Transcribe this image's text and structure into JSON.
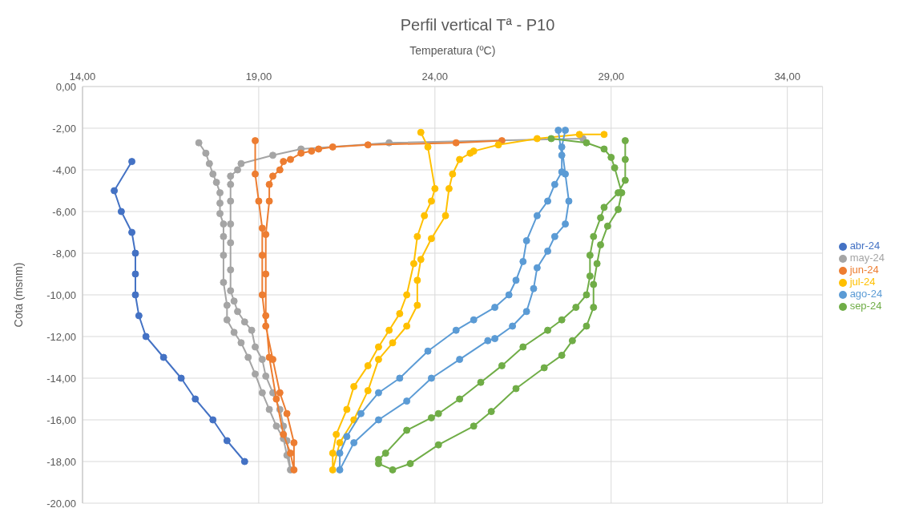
{
  "chart_data": {
    "type": "line",
    "title": "Perfil vertical Tª - P10",
    "xlabel": "Temperatura (ºC)",
    "ylabel": "Cota (msnm)",
    "xlim": [
      14,
      35
    ],
    "xticks": [
      {
        "value": 14,
        "label": "14,00"
      },
      {
        "value": 19,
        "label": "19,00"
      },
      {
        "value": 24,
        "label": "24,00"
      },
      {
        "value": 29,
        "label": "29,00"
      },
      {
        "value": 34,
        "label": "34,00"
      }
    ],
    "ylim": [
      -20,
      0
    ],
    "yticks": [
      {
        "value": 0,
        "label": "0,00"
      },
      {
        "value": -2,
        "label": "-2,00"
      },
      {
        "value": -4,
        "label": "-4,00"
      },
      {
        "value": -6,
        "label": "-6,00"
      },
      {
        "value": -8,
        "label": "-8,00"
      },
      {
        "value": -10,
        "label": "-10,00"
      },
      {
        "value": -12,
        "label": "-12,00"
      },
      {
        "value": -14,
        "label": "-14,00"
      },
      {
        "value": -16,
        "label": "-16,00"
      },
      {
        "value": -18,
        "label": "-18,00"
      },
      {
        "value": -20,
        "label": "-20,00"
      }
    ],
    "grid": true,
    "legend": "right",
    "marker": "circle",
    "line_style": "solid",
    "series": [
      {
        "name": "abr-24",
        "color": "#4472c4",
        "x": [
          15.4,
          14.9,
          15.1,
          15.4,
          15.5,
          15.5,
          15.5,
          15.6,
          15.8,
          16.3,
          16.8,
          17.2,
          17.7,
          18.1,
          18.6
        ],
        "values": [
          -3.6,
          -5.0,
          -6.0,
          -7.0,
          -8.0,
          -9.0,
          -10.0,
          -11.0,
          -12.0,
          -13.0,
          -14.0,
          -15.0,
          -16.0,
          -17.0,
          -18.0
        ]
      },
      {
        "name": "may-24",
        "color": "#a5a5a5",
        "x": [
          28.2,
          22.7,
          20.2,
          19.4,
          18.5,
          18.4,
          18.2,
          18.2,
          18.2,
          18.2,
          18.2,
          18.2,
          18.2,
          18.3,
          18.4,
          18.6,
          18.8,
          18.9,
          19.1,
          19.2,
          19.4,
          19.6,
          19.7,
          19.8,
          19.9,
          19.8,
          19.7,
          19.5,
          19.3,
          19.1,
          18.9,
          18.7,
          18.5,
          18.3,
          18.1,
          18.1,
          18.0,
          18.0,
          18.0,
          18.0,
          17.9,
          17.9,
          17.9,
          17.8,
          17.7,
          17.6,
          17.5,
          17.3
        ],
        "values": [
          -2.5,
          -2.7,
          -3.0,
          -3.3,
          -3.7,
          -4.0,
          -4.3,
          -4.7,
          -5.5,
          -6.6,
          -7.5,
          -8.8,
          -9.8,
          -10.3,
          -10.8,
          -11.3,
          -11.7,
          -12.5,
          -13.1,
          -13.9,
          -14.7,
          -15.5,
          -16.3,
          -17.0,
          -18.4,
          -17.7,
          -16.9,
          -16.3,
          -15.5,
          -14.7,
          -13.8,
          -13.0,
          -12.3,
          -11.8,
          -11.2,
          -10.5,
          -9.4,
          -8.1,
          -7.2,
          -6.6,
          -6.1,
          -5.6,
          -5.1,
          -4.6,
          -4.2,
          -3.7,
          -3.2,
          -2.7
        ]
      },
      {
        "name": "jun-24",
        "color": "#ed7d31",
        "x": [
          25.9,
          24.6,
          22.1,
          21.1,
          20.7,
          20.5,
          20.2,
          19.9,
          19.7,
          19.6,
          19.4,
          19.3,
          19.3,
          19.2,
          19.2,
          19.2,
          19.3,
          19.5,
          19.7,
          19.9,
          20.0,
          20.0,
          19.8,
          19.6,
          19.4,
          19.2,
          19.1,
          19.1,
          19.1,
          19.0,
          18.9,
          18.9
        ],
        "values": [
          -2.6,
          -2.7,
          -2.8,
          -2.9,
          -3.0,
          -3.1,
          -3.2,
          -3.5,
          -3.6,
          -4.0,
          -4.3,
          -4.7,
          -5.5,
          -7.1,
          -9.0,
          -11.0,
          -13.0,
          -15.0,
          -16.7,
          -17.6,
          -18.4,
          -17.1,
          -15.7,
          -14.7,
          -13.1,
          -11.5,
          -10.0,
          -8.1,
          -6.8,
          -5.5,
          -4.2,
          -2.6
        ]
      },
      {
        "name": "jul-24",
        "color": "#ffc000",
        "x": [
          28.8,
          28.1,
          26.9,
          25.8,
          25.1,
          25.0,
          24.7,
          24.5,
          24.4,
          24.3,
          23.9,
          23.6,
          23.5,
          23.5,
          23.2,
          22.8,
          22.4,
          22.1,
          21.7,
          21.3,
          21.1,
          21.1,
          21.2,
          21.5,
          21.7,
          22.1,
          22.4,
          22.7,
          23.0,
          23.2,
          23.4,
          23.5,
          23.7,
          23.9,
          24.0,
          23.8,
          23.6
        ],
        "values": [
          -2.3,
          -2.3,
          -2.5,
          -2.8,
          -3.1,
          -3.2,
          -3.5,
          -4.2,
          -4.9,
          -6.2,
          -7.3,
          -8.3,
          -9.3,
          -10.5,
          -11.5,
          -12.3,
          -13.1,
          -14.6,
          -16.0,
          -17.1,
          -18.4,
          -17.6,
          -16.7,
          -15.5,
          -14.4,
          -13.4,
          -12.5,
          -11.7,
          -10.9,
          -10.0,
          -8.5,
          -7.2,
          -6.2,
          -5.5,
          -4.9,
          -2.9,
          -2.2
        ]
      },
      {
        "name": "ago-24",
        "color": "#5b9bd5",
        "x": [
          27.7,
          27.6,
          27.7,
          27.8,
          27.7,
          27.4,
          27.2,
          26.9,
          26.8,
          26.6,
          26.2,
          25.7,
          25.5,
          24.7,
          23.9,
          23.2,
          22.4,
          21.7,
          21.3,
          21.3,
          21.5,
          21.9,
          22.4,
          23.0,
          23.8,
          24.6,
          25.1,
          25.7,
          26.1,
          26.3,
          26.5,
          26.6,
          26.9,
          27.2,
          27.4,
          27.6,
          27.6,
          27.5
        ],
        "values": [
          -2.1,
          -2.9,
          -4.2,
          -5.5,
          -6.6,
          -7.2,
          -7.9,
          -8.7,
          -9.7,
          -10.8,
          -11.5,
          -12.1,
          -12.2,
          -13.1,
          -14.0,
          -15.1,
          -16.0,
          -17.1,
          -18.4,
          -17.6,
          -16.8,
          -15.7,
          -14.7,
          -14.0,
          -12.7,
          -11.7,
          -11.2,
          -10.6,
          -10.0,
          -9.3,
          -8.4,
          -7.4,
          -6.2,
          -5.5,
          -4.7,
          -4.1,
          -3.3,
          -2.1
        ]
      },
      {
        "name": "sep-24",
        "color": "#70ad47",
        "x": [
          27.3,
          28.3,
          28.8,
          29.0,
          29.1,
          29.3,
          29.2,
          28.9,
          28.7,
          28.6,
          28.5,
          28.5,
          28.3,
          27.9,
          27.6,
          27.1,
          26.3,
          25.6,
          25.1,
          24.1,
          23.3,
          22.8,
          22.4,
          22.4,
          22.6,
          23.2,
          23.9,
          24.1,
          24.7,
          25.3,
          25.9,
          26.5,
          27.2,
          27.6,
          28.0,
          28.3,
          28.4,
          28.4,
          28.5,
          28.7,
          28.8,
          29.2,
          29.4,
          29.4,
          29.4
        ],
        "values": [
          -2.5,
          -2.7,
          -3.0,
          -3.4,
          -3.9,
          -5.1,
          -5.9,
          -6.7,
          -7.6,
          -8.5,
          -9.5,
          -10.6,
          -11.5,
          -12.2,
          -12.9,
          -13.5,
          -14.5,
          -15.6,
          -16.3,
          -17.2,
          -18.1,
          -18.4,
          -18.1,
          -17.9,
          -17.6,
          -16.5,
          -15.9,
          -15.7,
          -15.0,
          -14.2,
          -13.4,
          -12.5,
          -11.7,
          -11.2,
          -10.6,
          -10.0,
          -9.1,
          -8.1,
          -7.2,
          -6.3,
          -5.8,
          -5.1,
          -4.5,
          -3.5,
          -2.6
        ]
      }
    ]
  }
}
